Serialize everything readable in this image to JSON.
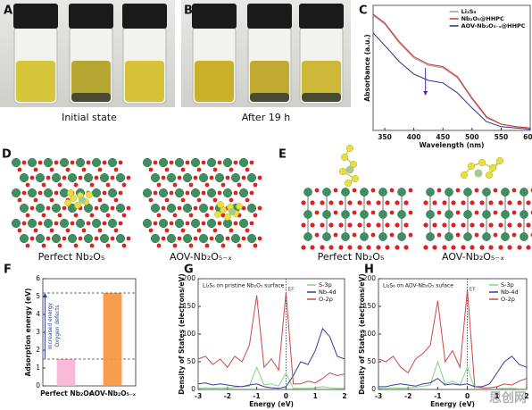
{
  "panels": {
    "A": {
      "label": "A",
      "caption": "Initial state"
    },
    "B": {
      "label": "B",
      "caption": "After 19 h"
    },
    "D": {
      "label": "D",
      "captions": [
        "Perfect Nb₂O₅",
        "AOV-Nb₂O₅₋ₓ"
      ]
    },
    "E": {
      "label": "E",
      "captions": [
        "Perfect Nb₂O₅",
        "AOV-Nb₂O₅₋ₓ"
      ]
    }
  },
  "watermark": "思创网",
  "chart_data": [
    {
      "type": "line",
      "panel_label": "C",
      "xlabel": "Wavelength (nm)",
      "ylabel": "Absorbance (a.u.)",
      "x": [
        330,
        350,
        375,
        400,
        425,
        450,
        475,
        500,
        525,
        550,
        575,
        600
      ],
      "xlim": [
        330,
        600
      ],
      "xticks": [
        350,
        400,
        450,
        500,
        550,
        600
      ],
      "ylim": [
        0,
        1
      ],
      "legend": "upper right",
      "series": [
        {
          "name": "Li₂S₆",
          "color": "#9a9a9a",
          "values": [
            0.92,
            0.85,
            0.7,
            0.58,
            0.52,
            0.5,
            0.42,
            0.25,
            0.1,
            0.05,
            0.03,
            0.02
          ]
        },
        {
          "name": "Nb₂O₅@HHPC",
          "color": "#d03030",
          "values": [
            0.93,
            0.86,
            0.71,
            0.59,
            0.53,
            0.51,
            0.43,
            0.26,
            0.11,
            0.05,
            0.03,
            0.02
          ]
        },
        {
          "name": "AOV-Nb₂O₅₋ₓ@HHPC",
          "color": "#2a2a8a",
          "values": [
            0.78,
            0.68,
            0.55,
            0.45,
            0.4,
            0.38,
            0.3,
            0.18,
            0.07,
            0.03,
            0.02,
            0.01
          ]
        }
      ]
    },
    {
      "type": "bar",
      "panel_label": "F",
      "ylabel": "Adsorption energy (eV)",
      "categories": [
        "Perfect Nb₂O₅",
        "AOV-Nb₂O₅₋ₓ"
      ],
      "values": [
        1.5,
        5.2
      ],
      "colors": [
        "#f7b3d4",
        "#f7913a"
      ],
      "ylim": [
        0,
        6
      ],
      "yticks": [
        0,
        1,
        2,
        3,
        4,
        5,
        6
      ],
      "annotations": [
        "Increased energy",
        "Oxygen defects"
      ],
      "annotation_color": "#2a3aa0"
    },
    {
      "type": "line",
      "panel_label": "G",
      "annotation": "Li₂S₆ on pristine Nb₂O₅ surface",
      "xlabel": "Energy (eV)",
      "ylabel": "Density of States (electrons/eV)",
      "x": [
        -3,
        -2.75,
        -2.5,
        -2.25,
        -2,
        -1.75,
        -1.5,
        -1.25,
        -1,
        -0.75,
        -0.5,
        -0.25,
        0,
        0.25,
        0.5,
        0.75,
        1,
        1.25,
        1.5,
        1.75,
        2
      ],
      "xlim": [
        -3,
        2
      ],
      "xticks": [
        -3,
        -2,
        -1,
        0,
        1,
        2
      ],
      "ylim": [
        0,
        200
      ],
      "yticks": [
        0,
        50,
        100,
        150,
        200
      ],
      "fermi_level": 0,
      "fermi_label": "EF",
      "legend": "upper right",
      "series": [
        {
          "name": "S-3p",
          "color": "#7fd67f",
          "values": [
            2,
            3,
            2,
            3,
            2,
            4,
            5,
            6,
            40,
            8,
            10,
            6,
            30,
            2,
            2,
            2,
            3,
            5,
            3,
            2,
            2
          ]
        },
        {
          "name": "Nb-4d",
          "color": "#3a3a9a",
          "values": [
            10,
            12,
            8,
            10,
            8,
            6,
            5,
            8,
            10,
            5,
            3,
            2,
            5,
            25,
            50,
            45,
            70,
            110,
            95,
            60,
            55
          ]
        },
        {
          "name": "O-2p",
          "color": "#c84848",
          "values": [
            55,
            60,
            45,
            55,
            40,
            60,
            50,
            80,
            170,
            40,
            55,
            35,
            175,
            10,
            10,
            15,
            12,
            20,
            30,
            25,
            28
          ]
        }
      ]
    },
    {
      "type": "line",
      "panel_label": "H",
      "annotation": "Li₂S₆ on AOV-Nb₂O₅ suface",
      "xlabel": "Energy (eV)",
      "ylabel": "Density of States (electrons/eV)",
      "x": [
        -3,
        -2.75,
        -2.5,
        -2.25,
        -2,
        -1.75,
        -1.5,
        -1.25,
        -1,
        -0.75,
        -0.5,
        -0.25,
        0,
        0.25,
        0.5,
        0.75,
        1,
        1.25,
        1.5,
        1.75,
        2
      ],
      "xlim": [
        -3,
        2
      ],
      "xticks": [
        -3,
        -2,
        -1,
        0,
        1,
        2
      ],
      "ylim": [
        0,
        200
      ],
      "yticks": [
        0,
        50,
        100,
        150,
        200
      ],
      "fermi_level": 0,
      "fermi_label": "EF",
      "legend": "upper right",
      "series": [
        {
          "name": "S-3p",
          "color": "#7fd67f",
          "values": [
            2,
            2,
            3,
            2,
            3,
            4,
            6,
            8,
            50,
            10,
            15,
            8,
            40,
            1,
            1,
            1,
            1,
            2,
            2,
            1,
            1
          ]
        },
        {
          "name": "Nb-4d",
          "color": "#3a3a9a",
          "values": [
            5,
            5,
            8,
            10,
            8,
            6,
            10,
            12,
            20,
            8,
            10,
            8,
            10,
            5,
            5,
            10,
            30,
            50,
            60,
            45,
            40
          ]
        },
        {
          "name": "O-2p",
          "color": "#c84848",
          "values": [
            55,
            50,
            60,
            40,
            30,
            55,
            65,
            80,
            160,
            50,
            70,
            40,
            180,
            5,
            3,
            3,
            5,
            10,
            8,
            15,
            20
          ]
        }
      ]
    }
  ]
}
